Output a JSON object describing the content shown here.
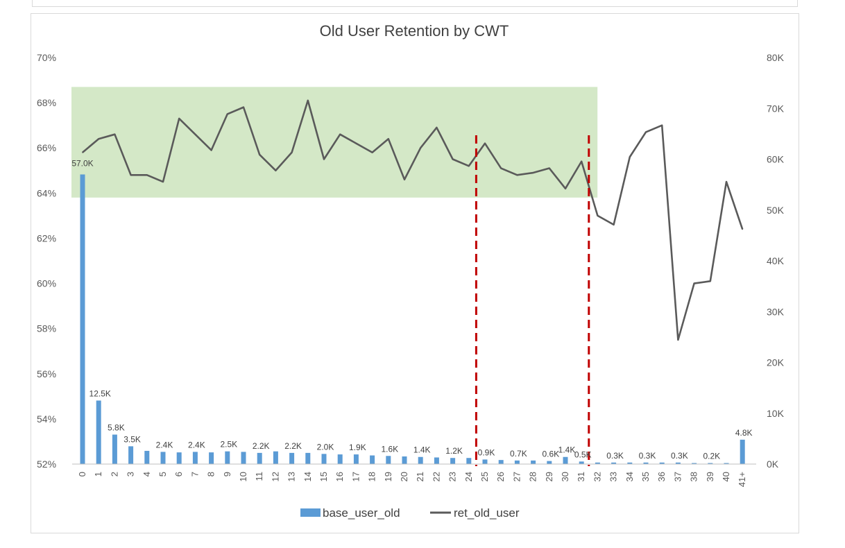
{
  "chart_data": {
    "type": "bar+line",
    "title": "Old User Retention by CWT",
    "categories": [
      "0",
      "1",
      "2",
      "3",
      "4",
      "5",
      "6",
      "7",
      "8",
      "9",
      "10",
      "11",
      "12",
      "13",
      "14",
      "15",
      "16",
      "17",
      "18",
      "19",
      "20",
      "21",
      "22",
      "23",
      "24",
      "25",
      "26",
      "27",
      "28",
      "29",
      "30",
      "31",
      "32",
      "33",
      "34",
      "35",
      "36",
      "37",
      "38",
      "39",
      "40",
      "41+"
    ],
    "left_axis": {
      "ticks": [
        "52%",
        "54%",
        "56%",
        "58%",
        "60%",
        "62%",
        "64%",
        "66%",
        "68%",
        "70%"
      ],
      "min": 52,
      "max": 70
    },
    "right_axis": {
      "ticks": [
        "0K",
        "10K",
        "20K",
        "30K",
        "40K",
        "50K",
        "60K",
        "70K",
        "80K"
      ],
      "min": 0,
      "max": 80
    },
    "series": [
      {
        "name": "base_user_old",
        "type": "bar",
        "axis": "right",
        "color": "#5b9bd5",
        "values": [
          57.0,
          12.5,
          5.8,
          3.5,
          2.6,
          2.4,
          2.3,
          2.4,
          2.3,
          2.5,
          2.4,
          2.2,
          2.5,
          2.2,
          2.2,
          2.0,
          1.9,
          1.9,
          1.7,
          1.6,
          1.5,
          1.4,
          1.3,
          1.2,
          1.2,
          0.9,
          0.8,
          0.7,
          0.7,
          0.6,
          1.4,
          0.5,
          0.3,
          0.3,
          0.3,
          0.3,
          0.3,
          0.3,
          0.2,
          0.2,
          0.2,
          4.8
        ],
        "labels": [
          "57.0K",
          "12.5K",
          "5.8K",
          "3.5K",
          "",
          "2.4K",
          "",
          "2.4K",
          "",
          "2.5K",
          "",
          "2.2K",
          "",
          "2.2K",
          "",
          "2.0K",
          "",
          "1.9K",
          "",
          "1.6K",
          "",
          "1.4K",
          "",
          "1.2K",
          "",
          "0.9K",
          "",
          "0.7K",
          "",
          "0.6K",
          "1.4K",
          "0.5K",
          "",
          "0.3K",
          "",
          "0.3K",
          "",
          "0.3K",
          "",
          "0.2K",
          "",
          "4.8K"
        ]
      },
      {
        "name": "ret_old_user",
        "type": "line",
        "axis": "left",
        "color": "#5a5a5a",
        "values": [
          65.8,
          66.4,
          66.6,
          64.8,
          64.8,
          64.5,
          67.3,
          66.6,
          65.9,
          67.5,
          67.8,
          65.7,
          65.0,
          65.8,
          68.1,
          65.5,
          66.6,
          66.2,
          65.8,
          66.4,
          64.6,
          66.0,
          66.9,
          65.5,
          65.2,
          66.2,
          65.1,
          64.8,
          64.9,
          65.1,
          64.2,
          65.4,
          63.0,
          62.6,
          65.6,
          66.7,
          67.0,
          57.5,
          60.0,
          60.1,
          64.5,
          62.4
        ]
      }
    ],
    "highlight_band": {
      "x_from": "0",
      "x_to": "31",
      "y_from": 63.8,
      "y_to": 68.7,
      "color": "#c6e0b4"
    },
    "reference_lines": [
      {
        "between": [
          "24",
          "25"
        ],
        "color": "#c00000"
      },
      {
        "between": [
          "31",
          "32"
        ],
        "color": "#c00000"
      }
    ],
    "legend": {
      "position": "bottom"
    },
    "grid": false
  }
}
